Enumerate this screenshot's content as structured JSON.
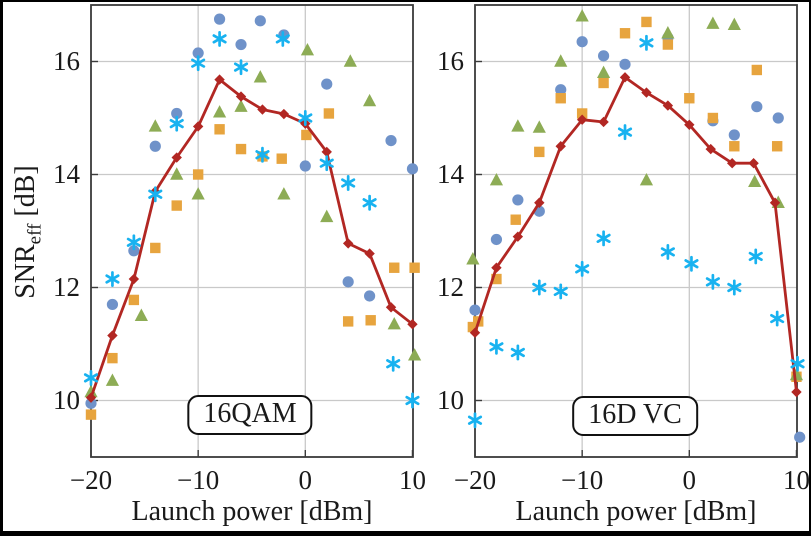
{
  "figure": {
    "ylabel": {
      "base": "SNR",
      "sub": "eff",
      "rest": " [dB]"
    },
    "background": "#ffffff",
    "frame_color": "#3b3b3b",
    "grid_color": "#c9c9c9"
  },
  "colors": {
    "circle_series": "#6f92c9",
    "asterisk_series": "#18b2f0",
    "triangle_series": "#8dac55",
    "square_series": "#e7a43e",
    "model_line": "#b22723"
  },
  "chart_data": [
    {
      "type": "scatter",
      "label": "16QAM",
      "xlabel": "Launch power [dBm]",
      "ylabel": "SNReff [dB]",
      "xlim": [
        -20,
        10.05
      ],
      "ylim": [
        9,
        17
      ],
      "xticks": [
        -20,
        -10,
        0,
        10
      ],
      "yticks": [
        10,
        12,
        14,
        16
      ],
      "grid": true,
      "legend": "none",
      "series": [
        {
          "name": "blue-circles",
          "marker": "circle",
          "line": false,
          "color": "#6f92c9",
          "points": [
            [
              -20,
              9.95
            ],
            [
              -18,
              11.7
            ],
            [
              -16,
              12.65
            ],
            [
              -14,
              14.5
            ],
            [
              -12,
              15.08
            ],
            [
              -10,
              16.15
            ],
            [
              -8,
              16.75
            ],
            [
              -6,
              16.3
            ],
            [
              -4.2,
              16.72
            ],
            [
              -2,
              16.47
            ],
            [
              0,
              14.15
            ],
            [
              2,
              15.6
            ],
            [
              4,
              12.1
            ],
            [
              6,
              11.85
            ],
            [
              8,
              14.6
            ],
            [
              10,
              14.1
            ]
          ]
        },
        {
          "name": "orange-squares",
          "marker": "square",
          "line": false,
          "color": "#e7a43e",
          "points": [
            [
              -20,
              9.75
            ],
            [
              -18,
              10.75
            ],
            [
              -16,
              11.78
            ],
            [
              -14,
              12.7
            ],
            [
              -12,
              13.45
            ],
            [
              -10,
              14.0
            ],
            [
              -8,
              14.8
            ],
            [
              -6,
              14.45
            ],
            [
              -4,
              14.32
            ],
            [
              -2.2,
              14.28
            ],
            [
              0.1,
              14.7
            ],
            [
              2.2,
              15.08
            ],
            [
              4,
              11.4
            ],
            [
              6.1,
              11.42
            ],
            [
              8.3,
              12.35
            ],
            [
              10.2,
              12.35
            ]
          ]
        },
        {
          "name": "green-triangles",
          "marker": "triangle",
          "line": false,
          "color": "#8dac55",
          "points": [
            [
              -20,
              10.15
            ],
            [
              -18,
              10.35
            ],
            [
              -15.3,
              11.5
            ],
            [
              -14,
              14.85
            ],
            [
              -12,
              14.0
            ],
            [
              -10,
              13.65
            ],
            [
              -8,
              15.1
            ],
            [
              -6,
              15.2
            ],
            [
              -4.2,
              15.72
            ],
            [
              -2,
              13.65
            ],
            [
              0.2,
              16.2
            ],
            [
              2,
              13.25
            ],
            [
              4.2,
              16.0
            ],
            [
              6,
              15.3
            ],
            [
              8.3,
              11.35
            ],
            [
              10.2,
              10.8
            ]
          ]
        },
        {
          "name": "model-prediction",
          "marker": "diamond",
          "line": true,
          "color": "#b22723",
          "points": [
            [
              -20,
              10.05
            ],
            [
              -18,
              11.15
            ],
            [
              -16,
              12.15
            ],
            [
              -14,
              13.7
            ],
            [
              -12,
              14.3
            ],
            [
              -10,
              14.85
            ],
            [
              -8,
              15.68
            ],
            [
              -6,
              15.38
            ],
            [
              -4,
              15.15
            ],
            [
              -2,
              15.07
            ],
            [
              0,
              14.9
            ],
            [
              2,
              14.4
            ],
            [
              4,
              12.78
            ],
            [
              6,
              12.6
            ],
            [
              8,
              11.65
            ],
            [
              10,
              11.35
            ]
          ]
        },
        {
          "name": "cyan-asterisks",
          "marker": "asterisk",
          "line": false,
          "color": "#18b2f0",
          "points": [
            [
              -20,
              10.4
            ],
            [
              -18,
              12.15
            ],
            [
              -16,
              12.8
            ],
            [
              -14,
              13.65
            ],
            [
              -12,
              14.9
            ],
            [
              -10,
              15.97
            ],
            [
              -8,
              16.4
            ],
            [
              -6,
              15.9
            ],
            [
              -4,
              14.35
            ],
            [
              -2.1,
              16.4
            ],
            [
              0,
              15.0
            ],
            [
              2,
              14.2
            ],
            [
              4,
              13.85
            ],
            [
              6,
              13.5
            ],
            [
              8.2,
              10.65
            ],
            [
              10,
              10.0
            ]
          ]
        }
      ]
    },
    {
      "type": "scatter",
      "label": "16D VC",
      "xlabel": "Launch power [dBm]",
      "ylabel": "SNReff [dB]",
      "xlim": [
        -20,
        10.05
      ],
      "ylim": [
        9,
        17
      ],
      "xticks": [
        -20,
        -10,
        0,
        10
      ],
      "yticks": [
        10,
        12,
        14,
        16
      ],
      "grid": true,
      "legend": "none",
      "series": [
        {
          "name": "blue-circles",
          "marker": "circle",
          "line": false,
          "color": "#6f92c9",
          "points": [
            [
              -20,
              11.6
            ],
            [
              -18,
              12.85
            ],
            [
              -16,
              13.55
            ],
            [
              -14,
              13.35
            ],
            [
              -12,
              15.5
            ],
            [
              -10,
              16.35
            ],
            [
              -8,
              16.1
            ],
            [
              -6,
              15.95
            ],
            [
              -2,
              16.42
            ],
            [
              2.2,
              14.95
            ],
            [
              4.2,
              14.7
            ],
            [
              6.3,
              15.2
            ],
            [
              8.3,
              15.0
            ],
            [
              10.3,
              9.35
            ]
          ]
        },
        {
          "name": "orange-squares",
          "marker": "square",
          "line": false,
          "color": "#e7a43e",
          "points": [
            [
              -20.2,
              11.3
            ],
            [
              -19.7,
              11.4
            ],
            [
              -18,
              12.15
            ],
            [
              -16.2,
              13.2
            ],
            [
              -14,
              14.4
            ],
            [
              -12,
              15.35
            ],
            [
              -10,
              15.08
            ],
            [
              -8,
              15.62
            ],
            [
              -6,
              16.5
            ],
            [
              -4,
              16.7
            ],
            [
              -2,
              16.3
            ],
            [
              0,
              15.35
            ],
            [
              2.2,
              15.0
            ],
            [
              4.2,
              14.5
            ],
            [
              6.3,
              15.85
            ],
            [
              8.2,
              14.5
            ],
            [
              10,
              10.42
            ]
          ]
        },
        {
          "name": "green-triangles",
          "marker": "triangle",
          "line": false,
          "color": "#8dac55",
          "points": [
            [
              -20.2,
              12.5
            ],
            [
              -18,
              13.9
            ],
            [
              -16,
              14.85
            ],
            [
              -14,
              14.83
            ],
            [
              -12,
              16.0
            ],
            [
              -10,
              16.8
            ],
            [
              -8,
              15.8
            ],
            [
              -4,
              13.9
            ],
            [
              -2,
              16.5
            ],
            [
              2.2,
              16.67
            ],
            [
              4.2,
              16.65
            ],
            [
              6.1,
              13.87
            ],
            [
              8.3,
              13.5
            ],
            [
              10,
              10.45
            ]
          ]
        },
        {
          "name": "model-prediction",
          "marker": "diamond",
          "line": true,
          "color": "#b22723",
          "points": [
            [
              -20,
              11.2
            ],
            [
              -18,
              12.35
            ],
            [
              -16,
              12.9
            ],
            [
              -14,
              13.5
            ],
            [
              -12,
              14.5
            ],
            [
              -10,
              14.97
            ],
            [
              -8,
              14.93
            ],
            [
              -6,
              15.72
            ],
            [
              -4,
              15.45
            ],
            [
              -2,
              15.22
            ],
            [
              0,
              14.88
            ],
            [
              2,
              14.45
            ],
            [
              4,
              14.2
            ],
            [
              6,
              14.2
            ],
            [
              8,
              13.5
            ],
            [
              10,
              10.15
            ]
          ]
        },
        {
          "name": "cyan-asterisks",
          "marker": "asterisk",
          "line": false,
          "color": "#18b2f0",
          "points": [
            [
              -20,
              9.65
            ],
            [
              -18,
              10.95
            ],
            [
              -16,
              10.85
            ],
            [
              -14,
              12.0
            ],
            [
              -12,
              11.93
            ],
            [
              -10,
              12.33
            ],
            [
              -8,
              12.87
            ],
            [
              -6,
              14.75
            ],
            [
              -4,
              16.33
            ],
            [
              -2,
              12.63
            ],
            [
              0.2,
              12.42
            ],
            [
              2.2,
              12.1
            ],
            [
              4.2,
              12.0
            ],
            [
              6.2,
              12.55
            ],
            [
              8.2,
              11.45
            ],
            [
              10.1,
              10.65
            ]
          ]
        }
      ]
    }
  ]
}
